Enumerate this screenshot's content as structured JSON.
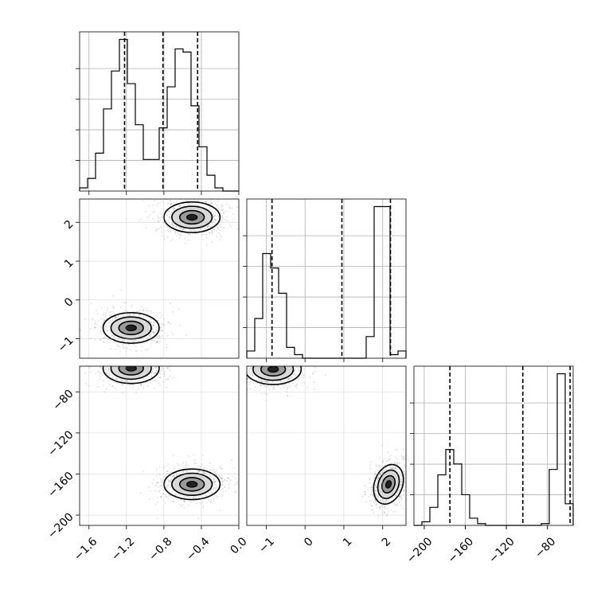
{
  "chart_data": {
    "type": "corner",
    "parameters": [
      {
        "index": 0,
        "range": [
          -1.7,
          0.0
        ],
        "ticks": [
          -1.6,
          -1.2,
          -0.8,
          -0.4,
          0.0
        ],
        "tick_labels": [
          "−1.6",
          "−1.2",
          "−0.8",
          "−0.4",
          "0.0"
        ],
        "quantiles": [
          -1.22,
          -0.81,
          -0.44
        ],
        "histogram": {
          "edges": [
            -1.7,
            -1.615,
            -1.53,
            -1.445,
            -1.36,
            -1.275,
            -1.19,
            -1.105,
            -1.02,
            -0.935,
            -0.85,
            -0.765,
            -0.68,
            -0.595,
            -0.51,
            -0.425,
            -0.34,
            -0.255,
            -0.17,
            -0.085,
            0.0
          ],
          "counts": [
            1,
            4,
            12,
            26,
            38,
            48,
            34,
            21,
            10,
            10,
            20,
            33,
            45,
            44,
            27,
            14,
            5,
            1,
            0,
            0
          ]
        }
      },
      {
        "index": 1,
        "range": [
          -1.5,
          2.6
        ],
        "ticks": [
          -1,
          0,
          1,
          2
        ],
        "tick_labels": [
          "−1",
          "0",
          "1",
          "2"
        ],
        "quantiles": [
          -0.85,
          0.95,
          2.2
        ],
        "histogram": {
          "edges": [
            -1.5,
            -1.295,
            -1.09,
            -0.885,
            -0.68,
            -0.475,
            -0.27,
            -0.065,
            0.14,
            0.345,
            0.55,
            0.755,
            0.96,
            1.165,
            1.37,
            1.575,
            1.78,
            1.985,
            2.19,
            2.395,
            2.6
          ],
          "counts": [
            2,
            11,
            29,
            25,
            18,
            3,
            1,
            0,
            0,
            0,
            0,
            0,
            0,
            0,
            0,
            6,
            42,
            42,
            1,
            2
          ]
        }
      },
      {
        "index": 2,
        "range": [
          -210,
          -55
        ],
        "ticks": [
          -200,
          -160,
          -120,
          -80
        ],
        "tick_labels": [
          "−200",
          "−160",
          "−120",
          "−80"
        ],
        "quantiles": [
          -175,
          -104,
          -58
        ],
        "histogram": {
          "edges": [
            -210,
            -202.25,
            -194.5,
            -186.75,
            -179,
            -171.25,
            -163.5,
            -155.75,
            -148,
            -140.25,
            -132.5,
            -124.75,
            -117,
            -109.25,
            -101.5,
            -93.75,
            -86,
            -78.25,
            -70.5,
            -62.75,
            -55
          ],
          "counts": [
            0,
            2,
            10,
            28,
            42,
            34,
            17,
            4,
            1,
            0,
            0,
            0,
            0,
            0,
            0,
            0,
            1,
            31,
            84,
            12
          ]
        }
      }
    ],
    "pair_contours": [
      {
        "x_param": 0,
        "y_param": 1,
        "modes": [
          {
            "x": -1.15,
            "y": -0.72
          },
          {
            "x": -0.5,
            "y": 2.13
          }
        ]
      },
      {
        "x_param": 0,
        "y_param": 2,
        "modes": [
          {
            "x": -1.15,
            "y": -57
          },
          {
            "x": -0.5,
            "y": -170
          }
        ]
      },
      {
        "x_param": 1,
        "y_param": 2,
        "modes": [
          {
            "x": -0.82,
            "y": -58
          },
          {
            "x": 2.15,
            "y": -170
          }
        ]
      }
    ],
    "grid": true,
    "quantile_line_style": "dashed",
    "density_style": "scatter points with 3 contour levels and grayscale fill"
  }
}
